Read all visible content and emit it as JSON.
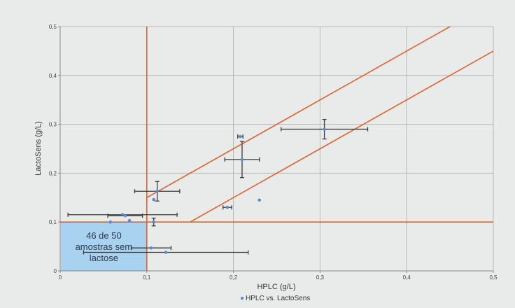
{
  "chart_data": {
    "type": "scatter",
    "xlabel": "HPLC (g/L)",
    "ylabel": "LactoSens (g/L)",
    "xlim": [
      0,
      0.5
    ],
    "ylim": [
      0,
      0.5
    ],
    "x_ticks": [
      0,
      0.1,
      0.2,
      0.3,
      0.4,
      0.5
    ],
    "y_ticks": [
      0,
      0.1,
      0.2,
      0.3,
      0.4,
      0.5
    ],
    "x_tick_labels": [
      "0",
      "0,1",
      "0,2",
      "0,3",
      "0,4",
      "0,5"
    ],
    "y_tick_labels": [
      "0",
      "0,1",
      "0,2",
      "0,3",
      "0,4",
      "0,5"
    ],
    "grid": true,
    "legend": {
      "position": "bottom-center",
      "entries": [
        "HPLC vs. LactoSens"
      ]
    },
    "series": [
      {
        "name": "HPLC vs. LactoSens",
        "color": "#5b8dcc",
        "points": [
          {
            "x": 0.305,
            "y": 0.29,
            "xerr": 0.05,
            "yerr": 0.02
          },
          {
            "x": 0.208,
            "y": 0.275,
            "xerr": 0.003,
            "yerr": 0
          },
          {
            "x": 0.21,
            "y": 0.228,
            "xerr": 0.02,
            "yerr": 0.037
          },
          {
            "x": 0.23,
            "y": 0.145,
            "xerr": 0,
            "yerr": 0
          },
          {
            "x": 0.193,
            "y": 0.13,
            "xerr": 0.005,
            "yerr": 0
          },
          {
            "x": 0.112,
            "y": 0.163,
            "xerr": 0.026,
            "yerr": 0.02
          },
          {
            "x": 0.108,
            "y": 0.146,
            "xerr": 0,
            "yerr": 0
          },
          {
            "x": 0.072,
            "y": 0.115,
            "xerr": 0.063,
            "yerr": 0
          },
          {
            "x": 0.075,
            "y": 0.113,
            "xerr": 0.02,
            "yerr": 0
          },
          {
            "x": 0.08,
            "y": 0.103,
            "xerr": 0,
            "yerr": 0
          },
          {
            "x": 0.108,
            "y": 0.1,
            "xerr": 0,
            "yerr": 0.008
          },
          {
            "x": 0.058,
            "y": 0.1,
            "xerr": 0,
            "yerr": 0
          },
          {
            "x": 0.105,
            "y": 0.047,
            "xerr": 0.023,
            "yerr": 0
          },
          {
            "x": 0.122,
            "y": 0.038,
            "xerr": 0.095,
            "yerr": 0
          }
        ]
      }
    ],
    "reference_lines": {
      "color": "#e0622d",
      "vertical_x": 0.1,
      "horizontal_y": 0.1,
      "band": [
        {
          "from": [
            0.1,
            0.15
          ],
          "to": [
            0.45,
            0.5
          ]
        },
        {
          "from": [
            0.15,
            0.1
          ],
          "to": [
            0.5,
            0.45
          ]
        }
      ]
    },
    "annotation": {
      "lines": [
        "46 de 50",
        "amostras sem",
        "lactose"
      ],
      "box_color": "#a9d2f0",
      "x_range": [
        0,
        0.1
      ],
      "y_range": [
        0,
        0.1
      ]
    }
  }
}
